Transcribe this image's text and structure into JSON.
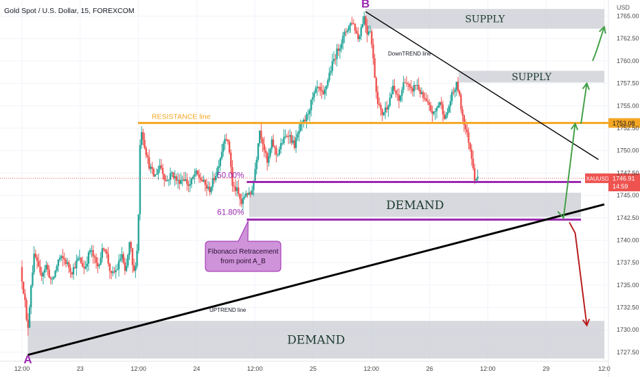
{
  "chart_data": {
    "type": "candlestick",
    "title": "Gold Spot / U.S. Dollar, 15, FOREXCOM",
    "currency": "USD",
    "symbol": "XAUUSD",
    "ylim": [
      1726.5,
      1766.8
    ],
    "y_ticks": [
      "1765.00",
      "1762.50",
      "1760.00",
      "1757.50",
      "1755.00",
      "1752.50",
      "1750.00",
      "1747.50",
      "1745.00",
      "1742.50",
      "1740.00",
      "1737.50",
      "1735.00",
      "1732.50",
      "1730.00",
      "1727.50"
    ],
    "x_ticks": [
      {
        "label": "12:00",
        "t": 0
      },
      {
        "label": "23",
        "t": 0.5
      },
      {
        "label": "12:00",
        "t": 1
      },
      {
        "label": "24",
        "t": 1.5
      },
      {
        "label": "12:00",
        "t": 2
      },
      {
        "label": "25",
        "t": 2.5
      },
      {
        "label": "12:00",
        "t": 3
      },
      {
        "label": "26",
        "t": 3.5
      },
      {
        "label": "12:00",
        "t": 4
      },
      {
        "label": "29",
        "t": 4.5
      },
      {
        "label": "12:0",
        "t": 5
      }
    ],
    "bull_color": "#26a69a",
    "bear_color": "#ef5350",
    "price_path": [
      [
        0.0,
        1737.0
      ],
      [
        0.04,
        1733.0
      ],
      [
        0.06,
        1729.5
      ],
      [
        0.09,
        1735.0
      ],
      [
        0.12,
        1738.5
      ],
      [
        0.17,
        1736.0
      ],
      [
        0.22,
        1737.2
      ],
      [
        0.27,
        1735.2
      ],
      [
        0.33,
        1738.0
      ],
      [
        0.38,
        1737.8
      ],
      [
        0.44,
        1736.5
      ],
      [
        0.5,
        1738.0
      ],
      [
        0.55,
        1736.8
      ],
      [
        0.6,
        1739.0
      ],
      [
        0.66,
        1737.0
      ],
      [
        0.72,
        1739.5
      ],
      [
        0.78,
        1736.0
      ],
      [
        0.83,
        1736.8
      ],
      [
        0.87,
        1738.5
      ],
      [
        0.9,
        1736.0
      ],
      [
        0.94,
        1740.0
      ],
      [
        0.97,
        1736.0
      ],
      [
        1.0,
        1738.5
      ],
      [
        1.02,
        1745.0
      ],
      [
        1.03,
        1753.0
      ],
      [
        1.06,
        1751.0
      ],
      [
        1.1,
        1748.5
      ],
      [
        1.15,
        1747.0
      ],
      [
        1.2,
        1748.5
      ],
      [
        1.25,
        1746.5
      ],
      [
        1.3,
        1747.5
      ],
      [
        1.35,
        1746.5
      ],
      [
        1.4,
        1747.0
      ],
      [
        1.45,
        1746.0
      ],
      [
        1.5,
        1747.5
      ],
      [
        1.55,
        1746.8
      ],
      [
        1.62,
        1745.5
      ],
      [
        1.68,
        1747.5
      ],
      [
        1.72,
        1749.5
      ],
      [
        1.76,
        1752.0
      ],
      [
        1.8,
        1749.5
      ],
      [
        1.82,
        1746.0
      ],
      [
        1.86,
        1745.5
      ],
      [
        1.9,
        1744.0
      ],
      [
        1.94,
        1745.5
      ],
      [
        1.97,
        1744.8
      ],
      [
        2.0,
        1746.5
      ],
      [
        2.03,
        1749.5
      ],
      [
        2.05,
        1752.5
      ],
      [
        2.08,
        1751.0
      ],
      [
        2.12,
        1748.5
      ],
      [
        2.16,
        1751.0
      ],
      [
        2.2,
        1749.5
      ],
      [
        2.25,
        1751.0
      ],
      [
        2.3,
        1752.0
      ],
      [
        2.35,
        1750.5
      ],
      [
        2.4,
        1752.5
      ],
      [
        2.45,
        1753.5
      ],
      [
        2.5,
        1755.5
      ],
      [
        2.55,
        1757.0
      ],
      [
        2.6,
        1756.0
      ],
      [
        2.65,
        1758.5
      ],
      [
        2.7,
        1760.5
      ],
      [
        2.75,
        1762.0
      ],
      [
        2.8,
        1763.5
      ],
      [
        2.85,
        1764.5
      ],
      [
        2.9,
        1762.5
      ],
      [
        2.95,
        1765.0
      ],
      [
        2.98,
        1763.0
      ],
      [
        3.0,
        1764.0
      ],
      [
        3.03,
        1760.0
      ],
      [
        3.06,
        1756.0
      ],
      [
        3.1,
        1754.0
      ],
      [
        3.15,
        1755.0
      ],
      [
        3.2,
        1757.0
      ],
      [
        3.25,
        1755.5
      ],
      [
        3.3,
        1758.0
      ],
      [
        3.35,
        1756.5
      ],
      [
        3.4,
        1757.5
      ],
      [
        3.45,
        1756.0
      ],
      [
        3.5,
        1755.0
      ],
      [
        3.55,
        1754.0
      ],
      [
        3.6,
        1755.5
      ],
      [
        3.65,
        1753.5
      ],
      [
        3.7,
        1756.0
      ],
      [
        3.75,
        1757.5
      ],
      [
        3.78,
        1755.0
      ],
      [
        3.82,
        1752.5
      ],
      [
        3.85,
        1751.0
      ],
      [
        3.88,
        1749.0
      ],
      [
        3.9,
        1747.0
      ],
      [
        3.92,
        1746.9
      ]
    ],
    "current_price": "1746.91",
    "countdown": "14:59",
    "resistance_value": "1753.08",
    "points": [
      {
        "name": "A",
        "t": 0.05,
        "y": 1727.2
      },
      {
        "name": "B",
        "t": 2.95,
        "y": 1765.5
      }
    ],
    "zones": [
      {
        "label": "SUPPLY",
        "t1": 2.95,
        "t2": 5.0,
        "y1": 1763.6,
        "y2": 1765.8
      },
      {
        "label": "SUPPLY",
        "t1": 3.75,
        "t2": 5.0,
        "y1": 1757.6,
        "y2": 1758.9
      },
      {
        "label": "DEMAND",
        "t1": 1.95,
        "t2": 4.8,
        "y1": 1742.6,
        "y2": 1745.3
      },
      {
        "label": "DEMAND",
        "t1": 0.05,
        "t2": 5.0,
        "y1": 1726.8,
        "y2": 1731.0
      }
    ],
    "resistance": {
      "label": "RESISTANCE line",
      "y": 1753.08,
      "t1": 1.02,
      "t2": 5.0,
      "color": "#f5a623"
    },
    "fib_levels": [
      {
        "label": "50.00%",
        "y": 1746.5,
        "t1": 1.93,
        "t2": 4.8
      },
      {
        "label": "61.80%",
        "y": 1742.3,
        "t1": 1.93,
        "t2": 4.8
      }
    ],
    "fib_color": "#9c27b0",
    "callout": {
      "line1": "Fibonacci Retracement",
      "line2": "from point A_B"
    },
    "downtrend": {
      "label": "DownTREND line",
      "from": [
        2.95,
        1765.5
      ],
      "to": [
        4.95,
        1749.0
      ]
    },
    "uptrend": {
      "label": "UPTREND line",
      "from": [
        0.05,
        1727.2
      ],
      "to": [
        5.0,
        1744.0
      ]
    },
    "arrows_up": [
      [
        4.6,
        1743.2
      ],
      [
        4.65,
        1742.5
      ],
      [
        4.75,
        1753.0
      ],
      [
        4.8,
        1753.0
      ],
      [
        4.85,
        1757.5
      ],
      [
        4.9,
        1760.0
      ],
      [
        4.93,
        1761.0
      ],
      [
        5.0,
        1763.8
      ]
    ],
    "arrow_down": [
      [
        4.7,
        1742.0
      ],
      [
        4.75,
        1740.8
      ],
      [
        4.85,
        1730.5
      ]
    ]
  }
}
